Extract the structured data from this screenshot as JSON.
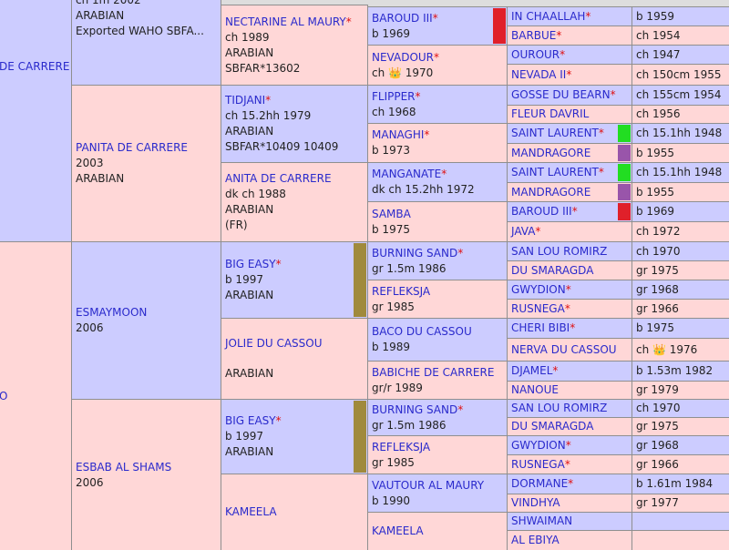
{
  "pedigree": {
    "columns": [
      [
        {
          "name": "DE CARRERE",
          "bg": "#ccccff"
        },
        {
          "name": "O",
          "bg": "#ffd7d7"
        }
      ],
      [
        {
          "lines": [
            "ch 1m 2002",
            "ARABIAN",
            "Exported WAHO SBFA..."
          ],
          "bg": "#ccccff"
        },
        {
          "name": "PANITA DE CARRERE",
          "lines": [
            "2003",
            "ARABIAN"
          ],
          "bg": "#ffd7d7"
        },
        {
          "name": "ESMAYMOON",
          "lines": [
            "2006"
          ],
          "bg": "#ccccff"
        },
        {
          "name": "ESBAB AL SHAMS",
          "lines": [
            "2006"
          ],
          "bg": "#ffd7d7"
        }
      ],
      [
        {
          "name": "NECTARINE AL MAURY",
          "star": "*",
          "lines": [
            "ch 1989",
            "ARABIAN",
            "SBFAR*13602"
          ],
          "bg": "#ffd7d7"
        },
        {
          "name": "TIDJANI",
          "star": "*",
          "lines": [
            "ch 15.2hh 1979",
            "ARABIAN",
            "SBFAR*10409 10409"
          ],
          "bg": "#ccccff"
        },
        {
          "name": "ANITA DE CARRERE",
          "lines": [
            "dk ch 1988",
            "ARABIAN",
            "(FR)"
          ],
          "bg": "#ffd7d7"
        },
        {
          "name": "BIG EASY",
          "star": "*",
          "lines": [
            "b 1997",
            "ARABIAN"
          ],
          "bg": "#ccccff",
          "marker": "#a08a3c"
        },
        {
          "name": "JOLIE DU CASSOU",
          "lines": [
            "ARABIAN"
          ],
          "bg": "#ffd7d7"
        },
        {
          "name": "BIG EASY",
          "star": "*",
          "lines": [
            "b 1997",
            "ARABIAN"
          ],
          "bg": "#ccccff",
          "marker": "#a08a3c"
        },
        {
          "name": "KAMEELA",
          "bg": "#ffd7d7"
        }
      ],
      [
        {
          "name": "BAROUD III",
          "star": "*",
          "lines": [
            "b 1969"
          ],
          "bg": "#ccccff",
          "marker": "#e0202a"
        },
        {
          "name": "NEVADOUR",
          "star": "*",
          "lines": [
            "ch 👑 1970"
          ],
          "bg": "#ffd7d7"
        },
        {
          "name": "FLIPPER",
          "star": "*",
          "lines": [
            "ch 1968"
          ],
          "bg": "#ccccff"
        },
        {
          "name": "MANAGHI",
          "star": "*",
          "lines": [
            "b 1973"
          ],
          "bg": "#ffd7d7"
        },
        {
          "name": "MANGANATE",
          "star": "*",
          "lines": [
            "dk ch 15.2hh 1972"
          ],
          "bg": "#ccccff"
        },
        {
          "name": "SAMBA",
          "lines": [
            "b 1975"
          ],
          "bg": "#ffd7d7"
        },
        {
          "name": "BURNING SAND",
          "star": "*",
          "lines": [
            "gr 1.5m 1986"
          ],
          "bg": "#ccccff"
        },
        {
          "name": "REFLEKSJA",
          "lines": [
            "gr 1985"
          ],
          "bg": "#ffd7d7"
        },
        {
          "name": "BACO DU CASSOU",
          "lines": [
            "b 1989"
          ],
          "bg": "#ccccff"
        },
        {
          "name": "BABICHE DE CARRERE",
          "lines": [
            "gr/r 1989"
          ],
          "bg": "#ffd7d7"
        },
        {
          "name": "BURNING SAND",
          "star": "*",
          "lines": [
            "gr 1.5m 1986"
          ],
          "bg": "#ccccff"
        },
        {
          "name": "REFLEKSJA",
          "lines": [
            "gr 1985"
          ],
          "bg": "#ffd7d7"
        },
        {
          "name": "VAUTOUR AL MAURY",
          "lines": [
            "b 1990"
          ],
          "bg": "#ccccff"
        },
        {
          "name": "KAMEELA",
          "bg": "#ffd7d7"
        }
      ],
      [
        {
          "name": "IN CHAALLAH",
          "star": "*",
          "bg": "#ccccff"
        },
        {
          "name": "BARBUE",
          "star": "*",
          "bg": "#ffd7d7"
        },
        {
          "name": "OUROUR",
          "star": "*",
          "bg": "#ccccff"
        },
        {
          "name": "NEVADA II",
          "star": "*",
          "bg": "#ffd7d7"
        },
        {
          "name": "GOSSE DU BEARN",
          "star": "*",
          "bg": "#ccccff"
        },
        {
          "name": "FLEUR DAVRIL",
          "bg": "#ffd7d7"
        },
        {
          "name": "SAINT LAURENT",
          "star": "*",
          "bg": "#ccccff",
          "marker": "#22dd22"
        },
        {
          "name": "MANDRAGORE",
          "bg": "#ffd7d7",
          "marker": "#9955aa"
        },
        {
          "name": "SAINT LAURENT",
          "star": "*",
          "bg": "#ccccff",
          "marker": "#22dd22"
        },
        {
          "name": "MANDRAGORE",
          "bg": "#ffd7d7",
          "marker": "#9955aa"
        },
        {
          "name": "BAROUD III",
          "star": "*",
          "bg": "#ccccff",
          "marker": "#e0202a"
        },
        {
          "name": "JAVA",
          "star": "*",
          "bg": "#ffd7d7"
        },
        {
          "name": "SAN LOU ROMIRZ",
          "bg": "#ccccff"
        },
        {
          "name": "DU SMARAGDA",
          "bg": "#ffd7d7"
        },
        {
          "name": "GWYDION",
          "star": "*",
          "bg": "#ccccff"
        },
        {
          "name": "RUSNEGA",
          "star": "*",
          "bg": "#ffd7d7"
        },
        {
          "name": "CHERI BIBI",
          "star": "*",
          "bg": "#ccccff"
        },
        {
          "name": "NERVA DU CASSOU",
          "bg": "#ffd7d7"
        },
        {
          "name": "DJAMEL",
          "star": "*",
          "bg": "#ccccff"
        },
        {
          "name": "NANOUE",
          "bg": "#ffd7d7"
        },
        {
          "name": "SAN LOU ROMIRZ",
          "bg": "#ccccff"
        },
        {
          "name": "DU SMARAGDA",
          "bg": "#ffd7d7"
        },
        {
          "name": "GWYDION",
          "star": "*",
          "bg": "#ccccff"
        },
        {
          "name": "RUSNEGA",
          "star": "*",
          "bg": "#ffd7d7"
        },
        {
          "name": "DORMANE",
          "star": "*",
          "bg": "#ccccff"
        },
        {
          "name": "VINDHYA",
          "bg": "#ffd7d7"
        },
        {
          "name": "SHWAIMAN",
          "bg": "#ccccff"
        },
        {
          "name": "AL EBIYA",
          "bg": "#ffd7d7"
        }
      ],
      [
        {
          "lines": [
            "b 1959"
          ],
          "bg": "#ccccff"
        },
        {
          "lines": [
            "ch 1954"
          ],
          "bg": "#ffd7d7"
        },
        {
          "lines": [
            "ch 1947"
          ],
          "bg": "#ccccff"
        },
        {
          "lines": [
            "ch 150cm 1955"
          ],
          "bg": "#ffd7d7"
        },
        {
          "lines": [
            "ch 155cm 1954"
          ],
          "bg": "#ccccff"
        },
        {
          "lines": [
            "ch 1956"
          ],
          "bg": "#ffd7d7"
        },
        {
          "lines": [
            "ch 15.1hh 1948"
          ],
          "bg": "#ccccff"
        },
        {
          "lines": [
            "b 1955"
          ],
          "bg": "#ffd7d7"
        },
        {
          "lines": [
            "ch 15.1hh 1948"
          ],
          "bg": "#ccccff"
        },
        {
          "lines": [
            "b 1955"
          ],
          "bg": "#ffd7d7"
        },
        {
          "lines": [
            "b 1969"
          ],
          "bg": "#ccccff"
        },
        {
          "lines": [
            "ch 1972"
          ],
          "bg": "#ffd7d7"
        },
        {
          "lines": [
            "ch 1970"
          ],
          "bg": "#ccccff"
        },
        {
          "lines": [
            "gr 1975"
          ],
          "bg": "#ffd7d7"
        },
        {
          "lines": [
            "gr 1968"
          ],
          "bg": "#ccccff"
        },
        {
          "lines": [
            "gr 1966"
          ],
          "bg": "#ffd7d7"
        },
        {
          "lines": [
            "b 1975"
          ],
          "bg": "#ccccff"
        },
        {
          "lines": [
            "ch 👑 1976"
          ],
          "bg": "#ffd7d7"
        },
        {
          "lines": [
            "b 1.53m 1982"
          ],
          "bg": "#ccccff"
        },
        {
          "lines": [
            "gr 1979"
          ],
          "bg": "#ffd7d7"
        },
        {
          "lines": [
            "ch 1970"
          ],
          "bg": "#ccccff"
        },
        {
          "lines": [
            "gr 1975"
          ],
          "bg": "#ffd7d7"
        },
        {
          "lines": [
            "gr 1968"
          ],
          "bg": "#ccccff"
        },
        {
          "lines": [
            "gr 1966"
          ],
          "bg": "#ffd7d7"
        },
        {
          "lines": [
            "b 1.61m 1984"
          ],
          "bg": "#ccccff"
        },
        {
          "lines": [
            "gr 1977"
          ],
          "bg": "#ffd7d7"
        },
        {
          "bg": "#ccccff"
        },
        {
          "bg": "#ffd7d7"
        }
      ]
    ]
  }
}
